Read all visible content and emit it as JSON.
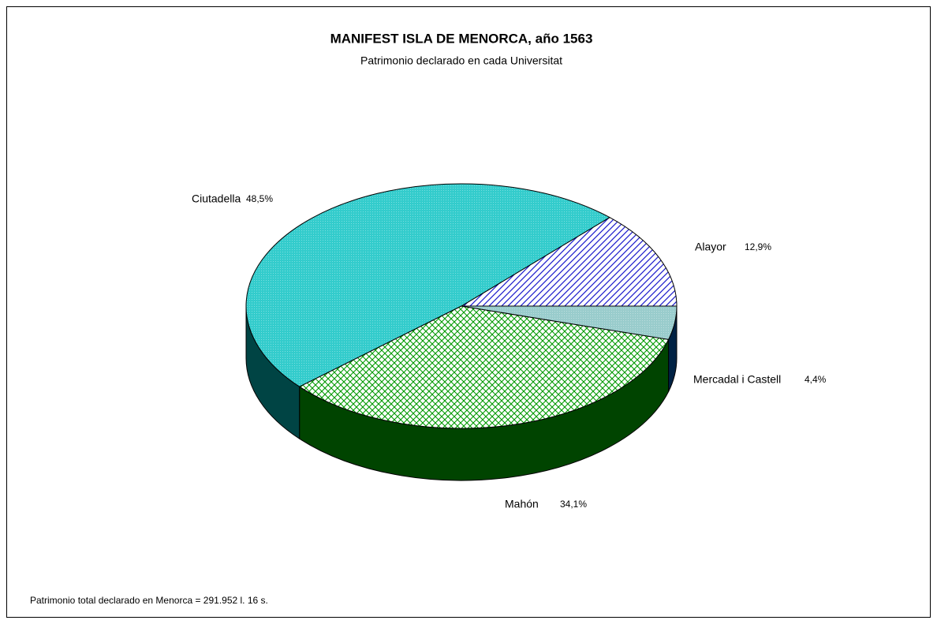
{
  "chart_data": {
    "type": "pie3d",
    "title": "MANIFEST ISLA DE MENORCA, año 1563",
    "subtitle": "Patrimonio declarado en cada Universitat",
    "categories": [
      "Alayor",
      "Ciutadella",
      "Mahón",
      "Mercadal i Castell"
    ],
    "values": [
      12.9,
      48.5,
      34.1,
      4.4
    ],
    "value_labels": [
      "12,9%",
      "48,5%",
      "34,1%",
      "4,4%"
    ],
    "colors": [
      "#1a1acc",
      "#33cccc",
      "#009900",
      "#99cccc"
    ],
    "side_colors": [
      "#000066",
      "#004444",
      "#004400",
      "#002244"
    ],
    "patterns": [
      "diagonal",
      "dots",
      "crosshatch",
      "dots"
    ],
    "annotation": "Patrimonio total declarado en Menorca = 291.952 l. 16 s."
  }
}
